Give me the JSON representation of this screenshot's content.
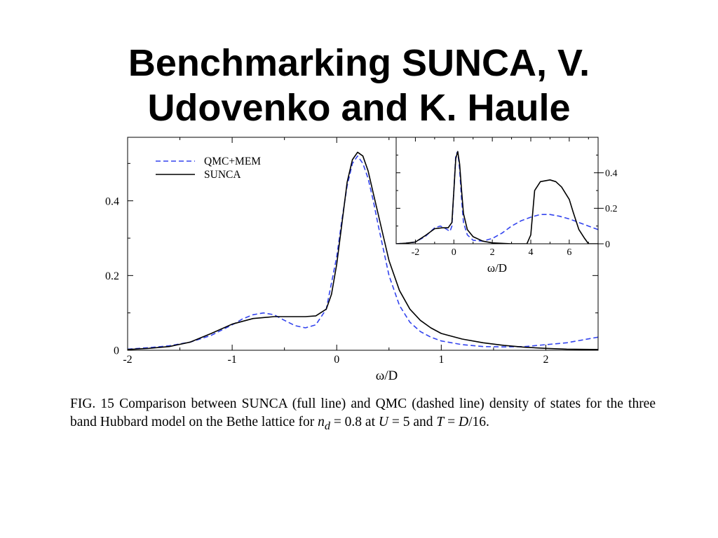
{
  "slide": {
    "title_line1": "Benchmarking SUNCA, V.",
    "title_line2": "Udovenko and K. Haule"
  },
  "caption": {
    "prefix": "FIG. 15  Comparison between SUNCA (full line) and QMC (dashed line) density of states for the three band Hubbard model on the Bethe lattice for ",
    "nd_symbol": "n",
    "nd_sub": "d",
    "nd_value": " = 0.8 at ",
    "u_symbol": "U",
    "u_value": " = 5 and ",
    "t_symbol": "T",
    "t_eq": " = ",
    "d_symbol": "D",
    "t_value": "/16."
  },
  "colors": {
    "qmc": "#3344ee",
    "sunca": "#000000"
  },
  "chart_data": [
    {
      "type": "line",
      "title": "",
      "xlabel": "ω/D",
      "ylabel": "",
      "xlim": [
        -2,
        2.5
      ],
      "ylim": [
        0,
        0.57
      ],
      "xticks": [
        -2,
        -1,
        0,
        1,
        2
      ],
      "yticks": [
        0,
        0.2,
        0.4
      ],
      "xtick_labels": [
        "-2",
        "-1",
        "0",
        "1",
        "2"
      ],
      "ytick_labels": [
        "0",
        "0.2",
        "0.4"
      ],
      "grid": false,
      "legend": "top-left",
      "series": [
        {
          "name": "QMC+MEM",
          "style": "dashed",
          "color": "#3344ee",
          "x": [
            -2.0,
            -1.8,
            -1.6,
            -1.4,
            -1.2,
            -1.0,
            -0.9,
            -0.8,
            -0.7,
            -0.6,
            -0.5,
            -0.4,
            -0.3,
            -0.2,
            -0.1,
            0.0,
            0.05,
            0.1,
            0.15,
            0.2,
            0.25,
            0.3,
            0.35,
            0.4,
            0.5,
            0.6,
            0.7,
            0.8,
            0.9,
            1.0,
            1.2,
            1.4,
            1.6,
            1.8,
            2.0,
            2.2,
            2.5
          ],
          "y": [
            0.003,
            0.007,
            0.012,
            0.022,
            0.04,
            0.068,
            0.084,
            0.095,
            0.1,
            0.095,
            0.08,
            0.066,
            0.06,
            0.068,
            0.11,
            0.25,
            0.35,
            0.44,
            0.5,
            0.52,
            0.5,
            0.46,
            0.4,
            0.33,
            0.2,
            0.12,
            0.075,
            0.05,
            0.035,
            0.025,
            0.015,
            0.01,
            0.009,
            0.01,
            0.015,
            0.02,
            0.035
          ]
        },
        {
          "name": "SUNCA",
          "style": "solid",
          "color": "#000000",
          "x": [
            -2.0,
            -1.8,
            -1.6,
            -1.4,
            -1.2,
            -1.0,
            -0.8,
            -0.6,
            -0.4,
            -0.3,
            -0.2,
            -0.1,
            -0.05,
            0.0,
            0.05,
            0.1,
            0.15,
            0.2,
            0.25,
            0.3,
            0.35,
            0.4,
            0.5,
            0.6,
            0.7,
            0.8,
            0.9,
            1.0,
            1.2,
            1.4,
            1.6,
            1.8,
            2.0,
            2.2,
            2.5
          ],
          "y": [
            0.002,
            0.005,
            0.01,
            0.022,
            0.045,
            0.07,
            0.085,
            0.09,
            0.09,
            0.09,
            0.092,
            0.11,
            0.15,
            0.23,
            0.34,
            0.45,
            0.51,
            0.53,
            0.52,
            0.48,
            0.42,
            0.36,
            0.24,
            0.16,
            0.11,
            0.08,
            0.06,
            0.045,
            0.03,
            0.02,
            0.013,
            0.008,
            0.005,
            0.003,
            0.002
          ]
        }
      ]
    },
    {
      "type": "line",
      "title": "",
      "xlabel": "ω/D",
      "ylabel": "",
      "xlim": [
        -3,
        7.5
      ],
      "ylim": [
        0,
        0.6
      ],
      "xticks": [
        -2,
        0,
        2,
        4,
        6
      ],
      "yticks": [
        0,
        0.2,
        0.4
      ],
      "xtick_labels": [
        "-2",
        "0",
        "2",
        "4",
        "6"
      ],
      "ytick_labels": [
        "0",
        "0.2",
        "0.4"
      ],
      "grid": false,
      "legend": "none",
      "series": [
        {
          "name": "QMC+MEM",
          "style": "dashed",
          "color": "#3344ee",
          "x": [
            -3.0,
            -2.5,
            -2.0,
            -1.5,
            -1.0,
            -0.7,
            -0.5,
            -0.2,
            -0.1,
            0.0,
            0.1,
            0.2,
            0.3,
            0.4,
            0.5,
            0.7,
            1.0,
            1.5,
            2.0,
            2.5,
            3.0,
            3.5,
            4.0,
            4.5,
            5.0,
            5.5,
            6.0,
            6.5,
            7.0,
            7.5
          ],
          "y": [
            0.0,
            0.003,
            0.01,
            0.04,
            0.09,
            0.1,
            0.09,
            0.07,
            0.1,
            0.3,
            0.5,
            0.52,
            0.42,
            0.25,
            0.12,
            0.05,
            0.02,
            0.015,
            0.03,
            0.06,
            0.1,
            0.13,
            0.15,
            0.165,
            0.165,
            0.155,
            0.14,
            0.12,
            0.1,
            0.08
          ]
        },
        {
          "name": "SUNCA",
          "style": "solid",
          "color": "#000000",
          "x": [
            -3.0,
            -2.5,
            -2.0,
            -1.5,
            -1.0,
            -0.6,
            -0.3,
            -0.1,
            0.0,
            0.1,
            0.2,
            0.3,
            0.4,
            0.5,
            0.7,
            1.0,
            1.5,
            2.0,
            3.0,
            3.5,
            3.8,
            4.0,
            4.2,
            4.5,
            5.0,
            5.3,
            5.6,
            6.0,
            6.2,
            6.5,
            6.8,
            7.0,
            7.5
          ],
          "y": [
            0.0,
            0.003,
            0.01,
            0.045,
            0.085,
            0.09,
            0.09,
            0.12,
            0.3,
            0.48,
            0.52,
            0.45,
            0.3,
            0.17,
            0.08,
            0.04,
            0.015,
            0.005,
            0.0,
            0.0,
            0.0,
            0.05,
            0.3,
            0.35,
            0.36,
            0.35,
            0.32,
            0.25,
            0.18,
            0.08,
            0.03,
            0.0,
            0.0
          ]
        }
      ]
    }
  ]
}
